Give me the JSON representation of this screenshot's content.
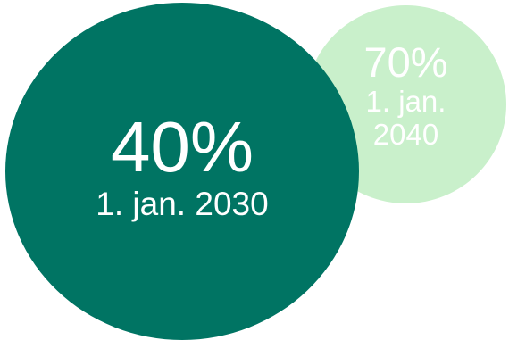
{
  "bubbles": [
    {
      "value": "40%",
      "date": "1. jan. 2030",
      "color": "#007463",
      "text_color": "#ffffff"
    },
    {
      "value": "70%",
      "date": "1. jan. 2040",
      "color": "#c9f0cb",
      "text_color": "#ffffff"
    }
  ]
}
